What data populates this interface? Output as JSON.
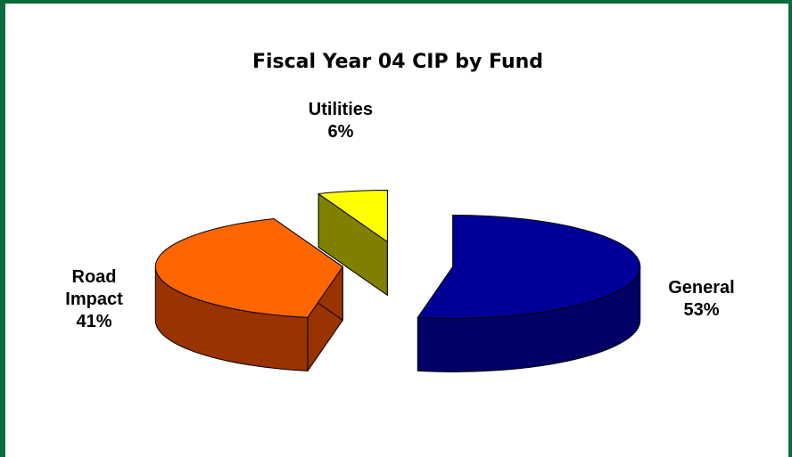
{
  "chart_data": {
    "type": "pie3d",
    "title": "Fiscal Year 04 CIP by Fund",
    "categories": [
      "General",
      "Road Impact",
      "Utilities"
    ],
    "values": [
      53,
      41,
      6
    ],
    "value_labels": [
      "53%",
      "41%",
      "6%"
    ],
    "colors": [
      "#000099",
      "#ff6600",
      "#ffff00"
    ],
    "side_colors": [
      "#000066",
      "#993300",
      "#808000"
    ]
  }
}
